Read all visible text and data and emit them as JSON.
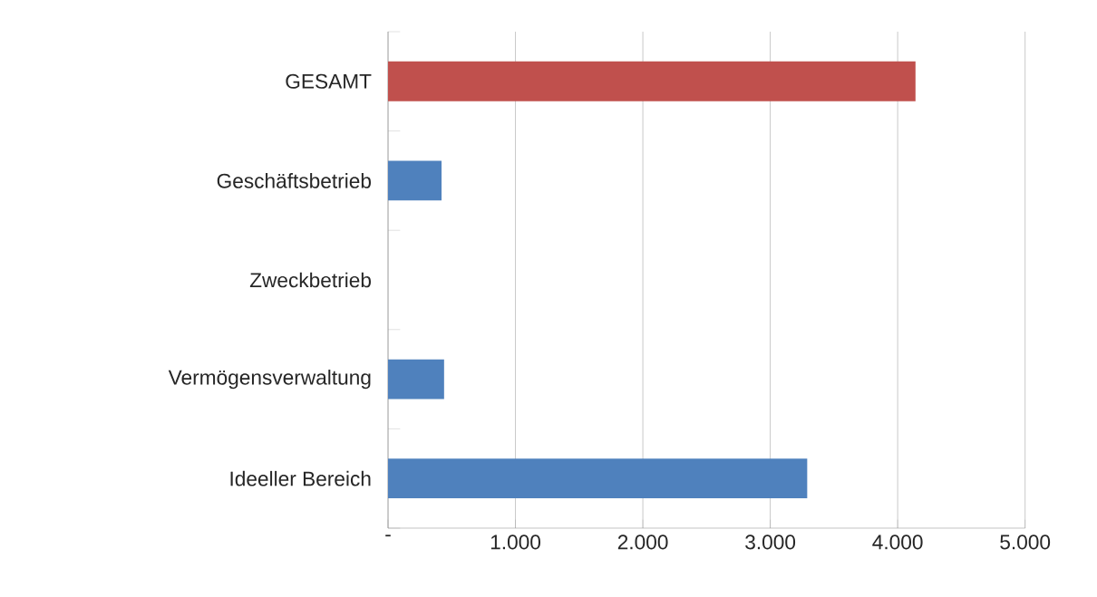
{
  "chart_data": {
    "type": "bar",
    "orientation": "horizontal",
    "categories": [
      "GESAMT",
      "Geschäftsbetrieb",
      "Zweckbetrieb",
      "Vermögensverwaltung",
      "Ideeller Bereich"
    ],
    "values": [
      4140,
      420,
      0,
      440,
      3290
    ],
    "colors": [
      "#c0504d",
      "#4f81bd",
      "#4f81bd",
      "#4f81bd",
      "#4f81bd"
    ],
    "xlim": [
      0,
      5000
    ],
    "xticks": [
      {
        "value": 0,
        "label": "-"
      },
      {
        "value": 1000,
        "label": "1.000"
      },
      {
        "value": 2000,
        "label": "2.000"
      },
      {
        "value": 3000,
        "label": "3.000"
      },
      {
        "value": 4000,
        "label": "4.000"
      },
      {
        "value": 5000,
        "label": "5.000"
      }
    ],
    "grid": "x"
  }
}
